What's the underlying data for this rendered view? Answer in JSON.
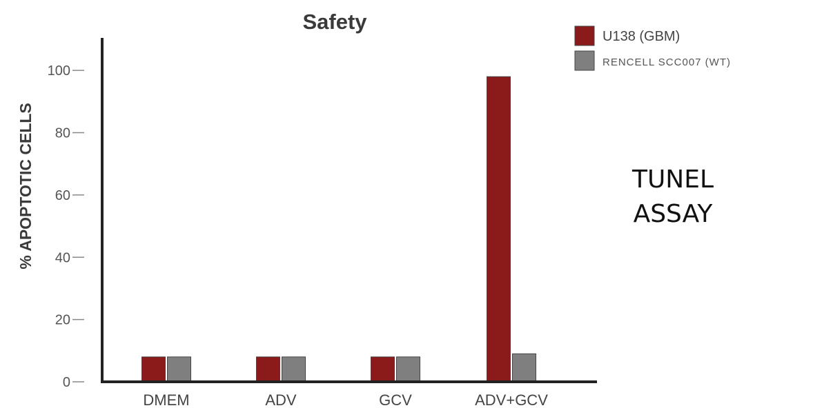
{
  "chart_data": {
    "type": "bar",
    "title": "Safety",
    "ylabel": "% APOPTOTIC CELLS",
    "xlabel": "",
    "ylim": [
      0,
      110
    ],
    "yticks": [
      0,
      20,
      40,
      60,
      80,
      100
    ],
    "categories": [
      "DMEM",
      "ADV",
      "GCV",
      "ADV+GCV"
    ],
    "series": [
      {
        "name": "U138 (GBM)",
        "color": "#8b1a1a",
        "values": [
          8,
          8,
          8,
          98
        ]
      },
      {
        "name": "RENCELL SCC007 (WT)",
        "color": "#7f7f7f",
        "values": [
          8,
          8,
          8,
          9
        ]
      }
    ],
    "legend_position": "top-right",
    "grid": false
  },
  "annotation": {
    "line1": "TUNEL",
    "line2": "ASSAY"
  }
}
